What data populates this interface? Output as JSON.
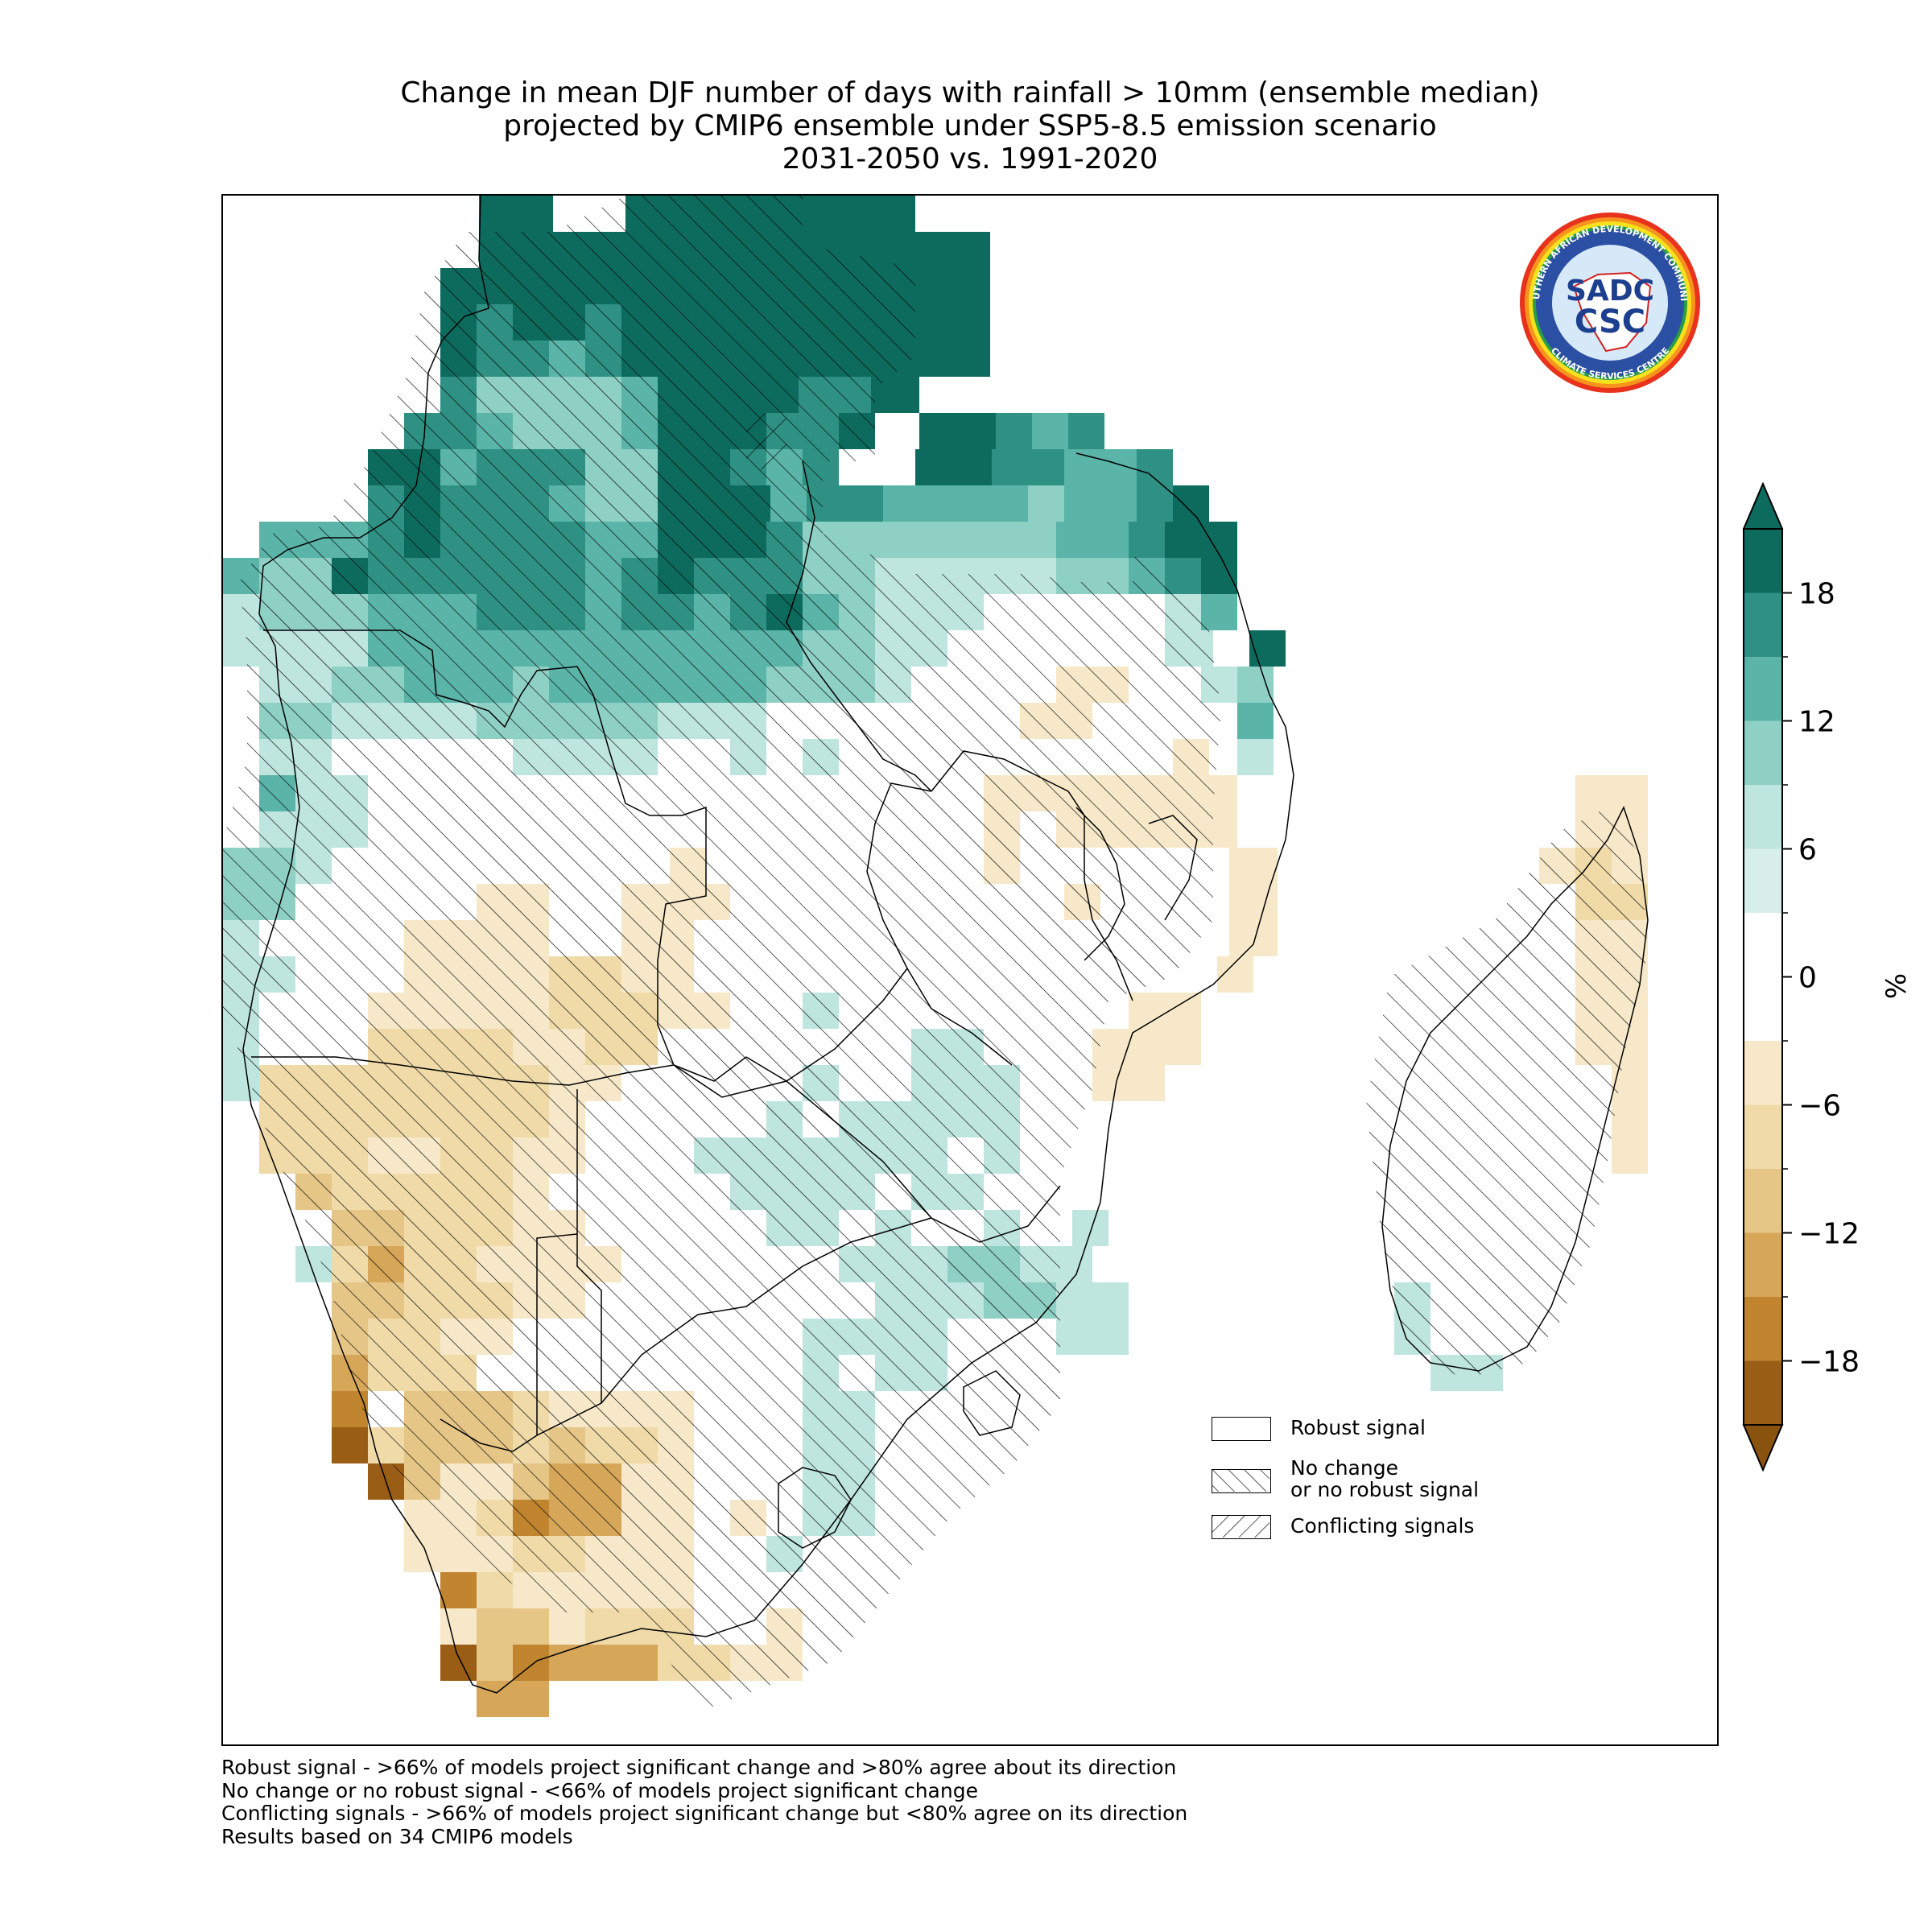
{
  "title": {
    "line1": "Change in mean DJF number of days with rainfall > 10mm (ensemble median)",
    "line2": "projected by CMIP6 ensemble under SSP5-8.5 emission scenario",
    "line3": "2031-2050 vs. 1991-2020"
  },
  "logo": {
    "ring_top_text": "SOUTHERN AFRICAN DEVELOPMENT COMMUNITY",
    "ring_bottom_text": "CLIMATE SERVICES CENTRE",
    "center_top": "SADC",
    "center_bottom": "CSC"
  },
  "legend": {
    "robust": "Robust signal",
    "no_change_line1": "No change",
    "no_change_line2": "or no robust signal",
    "conflicting": "Conflicting signals"
  },
  "footnotes": [
    "Robust signal - >66% of models project significant change and >80% agree about its direction",
    "No change or no robust signal - <66% of models project significant change",
    "Conflicting signals - >66% of models project significant change but <80% agree on its direction",
    "Results based on 34 CMIP6 models"
  ],
  "colorbar": {
    "unit": "%",
    "ticks": [
      18,
      12,
      6,
      0,
      -6,
      -12,
      -18
    ],
    "tick_labels": [
      "18",
      "12",
      "6",
      "0",
      "−6",
      "−12",
      "−18"
    ],
    "min": -21,
    "max": 21,
    "colors_top_to_bottom": [
      "#0d6b5e",
      "#2f9184",
      "#5ab4a8",
      "#8fd0c5",
      "#bfe5df",
      "#d8eeea",
      "#ffffff",
      "#ffffff",
      "#f6e8c8",
      "#efdaa8",
      "#e6c686",
      "#d6a659",
      "#c0852e",
      "#9a5d15"
    ],
    "extend_max_color": "#0d6b5e",
    "extend_min_color": "#8a520f"
  }
}
